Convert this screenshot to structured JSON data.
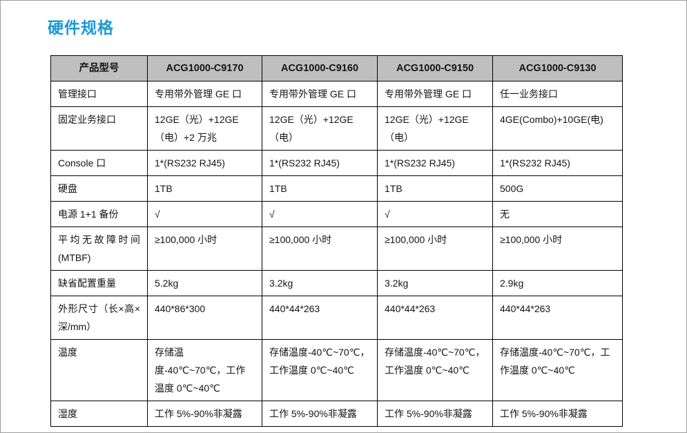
{
  "page": {
    "title": "硬件规格"
  },
  "colors": {
    "title_blue": "#1899D6",
    "header_bg": "#BFBFBF",
    "border_black": "#000000",
    "page_border_gray": "#9B9B9B",
    "text": "#141414"
  },
  "table": {
    "columns": [
      "产品型号",
      "ACG1000-C9170",
      "ACG1000-C9160",
      "ACG1000-C9150",
      "ACG1000-C9130"
    ],
    "rows": [
      {
        "label": "管理接口",
        "values": [
          "专用带外管理 GE 口",
          "专用带外管理 GE 口",
          "专用带外管理 GE 口",
          "任一业务接口"
        ]
      },
      {
        "label": "固定业务接口",
        "values": [
          "12GE（光）+12GE（电）+2 万兆",
          "12GE（光）+12GE（电）",
          "12GE（光）+12GE（电）",
          "4GE(Combo)+10GE(电)"
        ]
      },
      {
        "label": "Console 口",
        "values": [
          "1*(RS232 RJ45)",
          "1*(RS232 RJ45)",
          "1*(RS232 RJ45)",
          "1*(RS232 RJ45)"
        ]
      },
      {
        "label": "硬盘",
        "values": [
          "1TB",
          "1TB",
          "1TB",
          "500G"
        ]
      },
      {
        "label": "电源 1+1 备份",
        "values": [
          "√",
          "√",
          "√",
          "无"
        ]
      },
      {
        "label": "平均无故障时间(MTBF)",
        "values": [
          "≥100,000 小时",
          "≥100,000 小时",
          "≥100,000 小时",
          "≥100,000 小时"
        ]
      },
      {
        "label": "缺省配置重量",
        "values": [
          "5.2kg",
          "3.2kg",
          "3.2kg",
          "2.9kg"
        ]
      },
      {
        "label": "外形尺寸（长×高×深/mm）",
        "values": [
          "440*86*300",
          "440*44*263",
          "440*44*263",
          "440*44*263"
        ]
      },
      {
        "label": "温度",
        "values": [
          "存储温度-40℃~70℃，工作温度 0℃~40℃",
          "存储温度-40℃~70℃，工作温度 0℃~40℃",
          "存储温度-40℃~70℃，工作温度 0℃~40℃",
          "存储温度-40℃~70℃，工作温度 0℃~40℃"
        ]
      },
      {
        "label": "湿度",
        "values": [
          "工作 5%-90%非凝露",
          "工作 5%-90%非凝露",
          "工作 5%-90%非凝露",
          "工作 5%-90%非凝露"
        ]
      }
    ]
  }
}
